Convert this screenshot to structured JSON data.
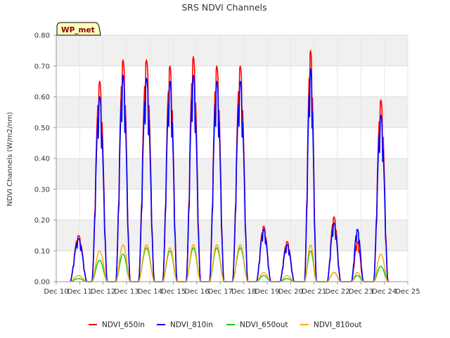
{
  "chart_data": {
    "type": "line",
    "title": "SRS NDVI Channels",
    "xlabel": "",
    "ylabel": "NDVI Channels (W/m2/nm)",
    "badge": "WP_met",
    "ylim": [
      0,
      0.8
    ],
    "xlim": [
      10,
      25
    ],
    "x_ticks": [
      10,
      11,
      12,
      13,
      14,
      15,
      16,
      17,
      18,
      19,
      20,
      21,
      22,
      23,
      24,
      25
    ],
    "x_tick_labels": [
      "Dec 10",
      "Dec 11",
      "Dec 12",
      "Dec 13",
      "Dec 14",
      "Dec 15",
      "Dec 16",
      "Dec 17",
      "Dec 18",
      "Dec 19",
      "Dec 20",
      "Dec 21",
      "Dec 22",
      "Dec 23",
      "Dec 24",
      "Dec 25"
    ],
    "y_ticks": [
      0.0,
      0.1,
      0.2,
      0.3,
      0.4,
      0.5,
      0.6,
      0.7,
      0.8
    ],
    "y_tick_labels": [
      "0.00",
      "0.10",
      "0.20",
      "0.30",
      "0.40",
      "0.50",
      "0.60",
      "0.70",
      "0.80"
    ],
    "grid": true,
    "legend_position": "bottom",
    "series": [
      {
        "name": "NDVI_650in",
        "color": "#ff0000",
        "peaks": [
          0.15,
          0.65,
          0.72,
          0.72,
          0.7,
          0.73,
          0.7,
          0.7,
          0.18,
          0.13,
          0.75,
          0.21,
          0.13,
          0.59
        ]
      },
      {
        "name": "NDVI_810in",
        "color": "#0000ff",
        "peaks": [
          0.14,
          0.6,
          0.67,
          0.66,
          0.65,
          0.67,
          0.65,
          0.65,
          0.17,
          0.12,
          0.69,
          0.19,
          0.17,
          0.54
        ]
      },
      {
        "name": "NDVI_650out",
        "color": "#00cc00",
        "peaks": [
          0.01,
          0.07,
          0.09,
          0.11,
          0.1,
          0.11,
          0.11,
          0.11,
          0.02,
          0.01,
          0.1,
          0.03,
          0.02,
          0.05
        ]
      },
      {
        "name": "NDVI_810out",
        "color": "#ffa500",
        "peaks": [
          0.02,
          0.1,
          0.12,
          0.12,
          0.11,
          0.12,
          0.12,
          0.12,
          0.03,
          0.02,
          0.12,
          0.03,
          0.03,
          0.09
        ]
      }
    ],
    "day_centers": [
      10.6,
      11.6,
      12.6,
      13.6,
      14.6,
      15.6,
      16.6,
      17.6,
      18.6,
      19.6,
      20.6,
      21.6,
      22.6,
      23.6
    ]
  }
}
